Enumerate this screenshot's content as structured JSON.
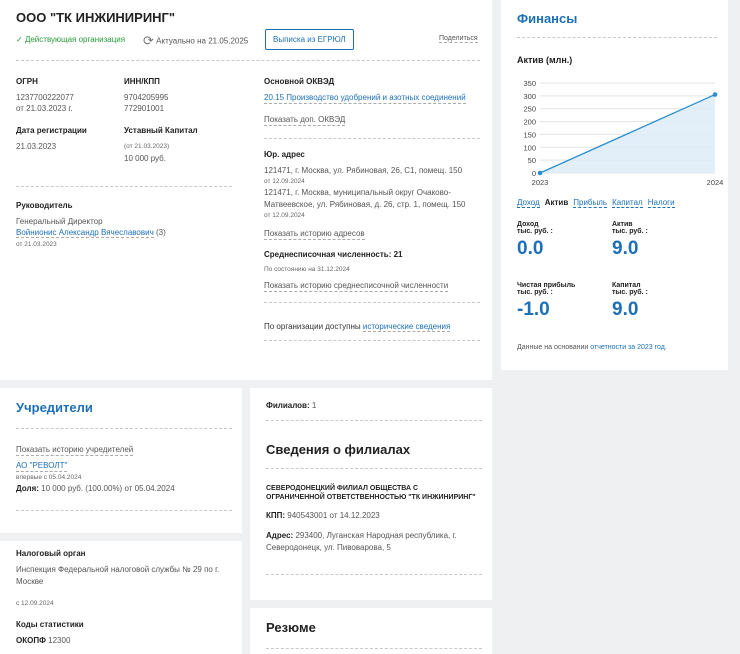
{
  "company": {
    "title": "ООО \"ТК ИНЖИНИРИНГ\"",
    "status": "Действующая организация",
    "actual": "Актуально на 21.05.2025",
    "egrul_button": "Выписка из ЕГРЮЛ",
    "share": "Поделиться"
  },
  "requisites": {
    "ogrn_label": "ОГРН",
    "ogrn_value": "1237700222077",
    "ogrn_date": "от 21.03.2023 г.",
    "inn_label": "ИНН/КПП",
    "inn_value": "9704205995",
    "kpp_value": "772901001",
    "reg_label": "Дата регистрации",
    "reg_value": "21.03.2023",
    "capital_label": "Уставный Капитал",
    "capital_date": "(от 21.03.2023)",
    "capital_value": "10 000 руб."
  },
  "head": {
    "label": "Руководитель",
    "role": "Генеральный Директор",
    "name": "Войнионис Александр Вячеславович",
    "count": "(3)",
    "since": "от 21.03.2023"
  },
  "okved": {
    "label": "Основной ОКВЭД",
    "value": "20.15 Производство удобрений и азотных соединений",
    "more": "Показать доп. ОКВЭД"
  },
  "address": {
    "label": "Юр. адрес",
    "line1": "121471, г. Москва, ул. Рябиновая, 26, С1, помещ. 150",
    "date1": "от 12.09.2024",
    "line2a": "121471, г. Москва, муниципальный округ Очаково-",
    "line2b": "Матвеевское, ул. Рябиновая, д. 26, стр. 1, помещ. 150",
    "date2": "от 12.09.2024",
    "history": "Показать историю адресов"
  },
  "employees": {
    "label": "Среднесписочная численность: 21",
    "asof": "По состоянию на 31.12.2024",
    "history": "Показать историю среднесписочной численности"
  },
  "historical": {
    "prefix": "По организации доступны",
    "link": "исторические сведения"
  },
  "founders": {
    "title": "Учредители",
    "history": "Показать историю учредителей",
    "name": "АО \"РЕВОЛТ\"",
    "first": "впервые с 05.04.2024",
    "share_label": "Доля:",
    "share_value": "10 000 руб. (100.00%) от 05.04.2024"
  },
  "tax": {
    "label": "Налоговый орган",
    "line1": "Инспекция Федеральной налоговой службы № 29 по г.",
    "line2": "Москве",
    "since": "с 12.09.2024",
    "stat_label": "Коды статистики",
    "okopf_label": "ОКОПФ",
    "okopf_value": "12300"
  },
  "branches": {
    "count_label": "Филиалов:",
    "count_value": "1",
    "title": "Сведения о филиалах",
    "name1": "СЕВЕРОДОНЕЦКИЙ ФИЛИАЛ ОБЩЕСТВА С",
    "name2": "ОГРАНИЧЕННОЙ ОТВЕТСТВЕННОСТЬЮ \"ТК ИНЖИНИРИНГ\"",
    "kpp_label": "КПП:",
    "kpp_value": "940543001 от 14.12.2023",
    "addr_label": "Адрес:",
    "addr1": "293400, Луганская Народная республика, г.",
    "addr2": "Северодонецк, ул. Пивоварова, 5"
  },
  "resume": {
    "title": "Резюме"
  },
  "finance": {
    "title": "Финансы",
    "chart_title": "Актив (млн.)",
    "tabs": [
      "Доход",
      "Актив",
      "Прибыль",
      "Капитал",
      "Налоги"
    ],
    "active_tab": "Актив",
    "metrics": [
      {
        "l1": "Доход",
        "l2": "тыс. руб. :",
        "value": "0.0"
      },
      {
        "l1": "Актив",
        "l2": "тыс. руб. :",
        "value": "9.0"
      },
      {
        "l1": "Чистая прибыль",
        "l2": "тыс. руб. :",
        "value": "-1.0"
      },
      {
        "l1": "Капитал",
        "l2": "тыс. руб. :",
        "value": "9.0"
      }
    ],
    "footnote_prefix": "Данные на основании",
    "footnote_link": "отчетности за 2023 год."
  },
  "chart_data": {
    "type": "area",
    "title": "Актив (млн.)",
    "x": [
      "2023",
      "2024"
    ],
    "series": [
      {
        "values": [
          0,
          305
        ]
      }
    ],
    "ylim": [
      0,
      350
    ],
    "yticks": [
      "350",
      "300",
      "250",
      "200",
      "150",
      "100",
      "50",
      "0"
    ],
    "grid": true,
    "color": "#2a8fd0"
  },
  "colors": {
    "accent": "#1d70b8",
    "status": "#2a9d3c"
  }
}
